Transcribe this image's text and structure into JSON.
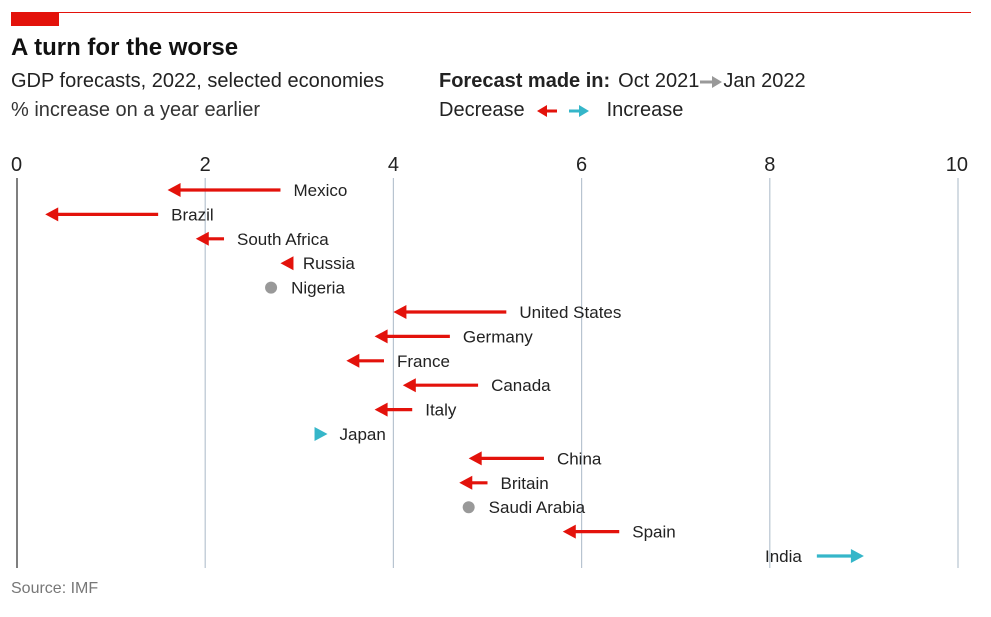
{
  "header": {
    "title": "A turn for the worse",
    "subtitle": "GDP forecasts, 2022, selected economies",
    "units": "% increase on a year earlier"
  },
  "legend": {
    "made_in_label": "Forecast made in:",
    "from_label": "Oct 2021",
    "to_label": "Jan 2022",
    "decrease_label": "Decrease",
    "increase_label": "Increase"
  },
  "footer": {
    "source": "Source: IMF"
  },
  "colors": {
    "decrease": "#e3120b",
    "increase": "#35b6c9",
    "unchanged": "#999999",
    "grid": "#b8c4d0",
    "accent": "#e3120b"
  },
  "chart_data": {
    "type": "arrow",
    "xlim": [
      0,
      10
    ],
    "x_ticks": [
      0,
      2,
      4,
      6,
      8,
      10
    ],
    "grid": true,
    "series": [
      {
        "name": "Oct 2021"
      },
      {
        "name": "Jan 2022"
      }
    ],
    "rows": [
      {
        "label": "Mexico",
        "oct2021": 2.8,
        "jan2022": 1.6
      },
      {
        "label": "Brazil",
        "oct2021": 1.5,
        "jan2022": 0.3
      },
      {
        "label": "South Africa",
        "oct2021": 2.2,
        "jan2022": 1.9
      },
      {
        "label": "Russia",
        "oct2021": 2.9,
        "jan2022": 2.8
      },
      {
        "label": "Nigeria",
        "oct2021": 2.7,
        "jan2022": 2.7
      },
      {
        "label": "United States",
        "oct2021": 5.2,
        "jan2022": 4.0
      },
      {
        "label": "Germany",
        "oct2021": 4.6,
        "jan2022": 3.8
      },
      {
        "label": "France",
        "oct2021": 3.9,
        "jan2022": 3.5
      },
      {
        "label": "Canada",
        "oct2021": 4.9,
        "jan2022": 4.1
      },
      {
        "label": "Italy",
        "oct2021": 4.2,
        "jan2022": 3.8
      },
      {
        "label": "Japan",
        "oct2021": 3.2,
        "jan2022": 3.3
      },
      {
        "label": "China",
        "oct2021": 5.6,
        "jan2022": 4.8
      },
      {
        "label": "Britain",
        "oct2021": 5.0,
        "jan2022": 4.7
      },
      {
        "label": "Saudi Arabia",
        "oct2021": 4.8,
        "jan2022": 4.8
      },
      {
        "label": "Spain",
        "oct2021": 6.4,
        "jan2022": 5.8
      },
      {
        "label": "India",
        "oct2021": 8.5,
        "jan2022": 9.0
      }
    ]
  }
}
